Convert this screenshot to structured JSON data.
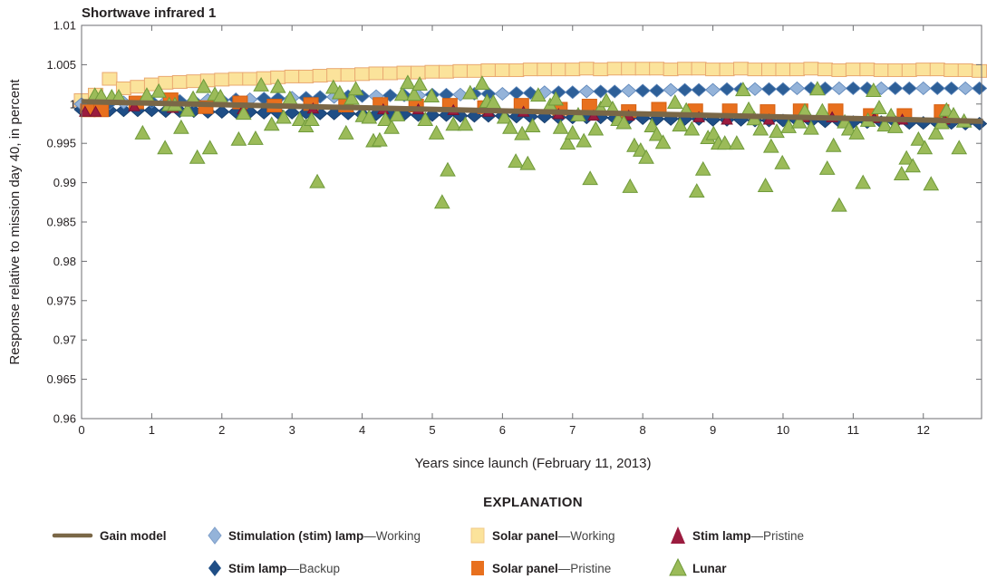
{
  "chart_data": {
    "type": "scatter",
    "title": "Shortwave infrared 1",
    "xlabel": "Years since launch (February 11, 2013)",
    "ylabel": "Response relative to mission day 40, in percent",
    "xlim": [
      0,
      12.83
    ],
    "ylim": [
      0.96,
      1.01
    ],
    "x_ticks": [
      "0",
      "1",
      "2",
      "3",
      "4",
      "5",
      "6",
      "7",
      "8",
      "9",
      "10",
      "11",
      "12"
    ],
    "y_ticks": [
      "0.96",
      "0.965",
      "0.97",
      "0.975",
      "0.98",
      "0.985",
      "0.99",
      "0.995",
      "1",
      "1.005",
      "1.01"
    ],
    "grid": false,
    "legend_title": "EXPLANATION",
    "legend_placement": "bottom",
    "legend": [
      {
        "key": "gain_model",
        "name": "Gain model",
        "suffix": ""
      },
      {
        "key": "stim_working",
        "name": "Stimulation (stim) lamp",
        "suffix": "—Working"
      },
      {
        "key": "solar_working",
        "name": "Solar panel",
        "suffix": "—Working"
      },
      {
        "key": "stim_pristine",
        "name": "Stim lamp",
        "suffix": "—Pristine"
      },
      {
        "key": "stim_backup",
        "name": "Stim lamp",
        "suffix": "—Backup"
      },
      {
        "key": "solar_pristine",
        "name": "Solar panel",
        "suffix": "—Pristine"
      },
      {
        "key": "lunar",
        "name": "Lunar",
        "suffix": ""
      }
    ],
    "colors": {
      "gain_model": "#7a6747",
      "stim_working": "#94b3d9",
      "stim_backup": "#1f4e86",
      "solar_working": "#fbe39b",
      "solar_pristine": "#e8701e",
      "stim_pristine": "#9b1c3f",
      "lunar": "#9bbb59"
    },
    "dense_x": [
      0,
      0.2,
      0.4,
      0.6,
      0.8,
      1.0,
      1.2,
      1.4,
      1.6,
      1.8,
      2.0,
      2.2,
      2.4,
      2.6,
      2.8,
      3.0,
      3.2,
      3.4,
      3.6,
      3.8,
      4.0,
      4.2,
      4.4,
      4.6,
      4.8,
      5.0,
      5.2,
      5.4,
      5.6,
      5.8,
      6.0,
      6.2,
      6.4,
      6.6,
      6.8,
      7.0,
      7.2,
      7.4,
      7.6,
      7.8,
      8.0,
      8.2,
      8.4,
      8.6,
      8.8,
      9.0,
      9.2,
      9.4,
      9.6,
      9.8,
      10.0,
      10.2,
      10.4,
      10.6,
      10.8,
      11.0,
      11.2,
      11.4,
      11.6,
      11.8,
      12.0,
      12.2,
      12.4,
      12.6,
      12.8
    ],
    "series": {
      "solar_working": [
        1.0005,
        1.0012,
        1.0032,
        1.002,
        1.0022,
        1.0025,
        1.0027,
        1.0028,
        1.0029,
        1.003,
        1.0031,
        1.0032,
        1.0032,
        1.0033,
        1.0034,
        1.0035,
        1.0035,
        1.0036,
        1.0037,
        1.0037,
        1.0038,
        1.0039,
        1.0039,
        1.004,
        1.004,
        1.0041,
        1.0041,
        1.0042,
        1.0042,
        1.0043,
        1.0043,
        1.0043,
        1.0044,
        1.0044,
        1.0044,
        1.0044,
        1.0045,
        1.0044,
        1.0045,
        1.0045,
        1.0045,
        1.0045,
        1.0044,
        1.0045,
        1.0045,
        1.0044,
        1.0044,
        1.0045,
        1.0044,
        1.0044,
        1.0044,
        1.0044,
        1.0045,
        1.0044,
        1.0043,
        1.0044,
        1.0044,
        1.0043,
        1.0043,
        1.0043,
        1.0044,
        1.0044,
        1.0043,
        1.0043,
        1.0042
      ],
      "stim_working": [
        1.0,
        1.0001,
        1.0001,
        1.0002,
        1.0002,
        1.0003,
        1.0003,
        1.0004,
        1.0004,
        1.0005,
        1.0005,
        1.0006,
        1.0006,
        1.0007,
        1.0007,
        1.0008,
        1.0008,
        1.0009,
        1.0009,
        1.001,
        1.001,
        1.001,
        1.0011,
        1.0011,
        1.0011,
        1.0012,
        1.0012,
        1.0012,
        1.0013,
        1.0013,
        1.0013,
        1.0014,
        1.0014,
        1.0015,
        1.0015,
        1.0015,
        1.0016,
        1.0016,
        1.0016,
        1.0017,
        1.0017,
        1.0017,
        1.0018,
        1.0018,
        1.0018,
        1.0018,
        1.0019,
        1.0019,
        1.0019,
        1.0019,
        1.0019,
        1.002,
        1.002,
        1.002,
        1.002,
        1.002,
        1.002,
        1.002,
        1.002,
        1.002,
        1.002,
        1.002,
        1.002,
        1.002,
        1.002
      ],
      "stim_backup": [
        0.9993,
        0.9993,
        0.9992,
        0.9992,
        0.9992,
        0.9992,
        0.9991,
        0.9991,
        0.9991,
        0.999,
        0.999,
        0.999,
        0.999,
        0.9989,
        0.9989,
        0.9989,
        0.9989,
        0.9988,
        0.9988,
        0.9988,
        0.9987,
        0.9987,
        0.9987,
        0.9987,
        0.9986,
        0.9986,
        0.9986,
        0.9985,
        0.9985,
        0.9985,
        0.9985,
        0.9984,
        0.9984,
        0.9984,
        0.9983,
        0.9983,
        0.9983,
        0.9983,
        0.9982,
        0.9982,
        0.9982,
        0.9981,
        0.9981,
        0.9981,
        0.9981,
        0.998,
        0.998,
        0.998,
        0.9979,
        0.9979,
        0.9979,
        0.9979,
        0.9978,
        0.9978,
        0.9978,
        0.9977,
        0.9977,
        0.9977,
        0.9977,
        0.9976,
        0.9976,
        0.9976,
        0.9976,
        0.9975,
        0.9975
      ],
      "solar_pristine": [
        [
          0.09,
          0.9992
        ],
        [
          0.28,
          0.9992
        ],
        [
          0.78,
          1.0002
        ],
        [
          1.27,
          1.0006
        ],
        [
          1.77,
          0.9996
        ],
        [
          2.26,
          1.0002
        ],
        [
          2.75,
          0.9998
        ],
        [
          3.27,
          1.0
        ],
        [
          3.77,
          0.9998
        ],
        [
          4.26,
          1.0
        ],
        [
          4.77,
          0.9998
        ],
        [
          5.25,
          0.9999
        ],
        [
          5.75,
          0.9996
        ],
        [
          6.27,
          0.9999
        ],
        [
          6.82,
          0.9994
        ],
        [
          7.24,
          0.9998
        ],
        [
          7.8,
          0.9991
        ],
        [
          8.23,
          0.9994
        ],
        [
          8.75,
          0.9992
        ],
        [
          9.24,
          0.9992
        ],
        [
          9.78,
          0.9991
        ],
        [
          10.25,
          0.9992
        ],
        [
          10.75,
          0.9992
        ],
        [
          11.25,
          0.9986
        ],
        [
          11.73,
          0.9986
        ],
        [
          12.26,
          0.9991
        ]
      ],
      "stim_pristine": [
        [
          0.05,
          0.999
        ],
        [
          0.2,
          0.999
        ],
        [
          0.75,
          0.9997
        ],
        [
          1.3,
          0.9995
        ],
        [
          2.3,
          0.9993
        ],
        [
          3.3,
          0.9994
        ],
        [
          4.3,
          0.9993
        ],
        [
          4.8,
          0.9993
        ],
        [
          5.3,
          0.9992
        ],
        [
          5.8,
          0.999
        ],
        [
          6.3,
          0.999
        ],
        [
          6.8,
          0.9987
        ],
        [
          7.3,
          0.9985
        ],
        [
          7.8,
          0.9985
        ],
        [
          8.8,
          0.9983
        ],
        [
          9.2,
          0.998
        ],
        [
          9.8,
          0.998
        ],
        [
          10.3,
          0.9983
        ],
        [
          10.7,
          0.9983
        ],
        [
          11.3,
          0.9982
        ],
        [
          11.7,
          0.998
        ],
        [
          12.3,
          0.998
        ]
      ],
      "gain_model": [
        [
          0,
          1.0003
        ],
        [
          12.85,
          0.9978
        ]
      ],
      "lunar": [
        [
          0.19,
          1.0011
        ],
        [
          0.28,
          1.001
        ],
        [
          0.43,
          1.0009
        ],
        [
          0.53,
          1.0009
        ],
        [
          0.87,
          0.9963
        ],
        [
          0.93,
          1.0011
        ],
        [
          1.1,
          1.0016
        ],
        [
          1.19,
          0.9944
        ],
        [
          1.25,
          0.9999
        ],
        [
          1.33,
          0.9999
        ],
        [
          1.42,
          0.997
        ],
        [
          1.51,
          0.9992
        ],
        [
          1.59,
          1.0007
        ],
        [
          1.65,
          0.9932
        ],
        [
          1.74,
          1.0022
        ],
        [
          1.83,
          0.9944
        ],
        [
          1.9,
          1.0012
        ],
        [
          1.98,
          1.0009
        ],
        [
          2.24,
          0.9955
        ],
        [
          2.31,
          0.9988
        ],
        [
          2.48,
          0.9956
        ],
        [
          2.56,
          1.0024
        ],
        [
          2.71,
          0.9974
        ],
        [
          2.8,
          1.0022
        ],
        [
          2.88,
          0.9983
        ],
        [
          2.97,
          1.0007
        ],
        [
          3.11,
          0.998
        ],
        [
          3.2,
          0.9972
        ],
        [
          3.28,
          0.998
        ],
        [
          3.36,
          0.9901
        ],
        [
          3.59,
          1.0021
        ],
        [
          3.68,
          1.0014
        ],
        [
          3.77,
          0.9963
        ],
        [
          3.85,
          1.0007
        ],
        [
          3.91,
          1.0019
        ],
        [
          4.01,
          0.9985
        ],
        [
          4.1,
          0.9983
        ],
        [
          4.16,
          0.9953
        ],
        [
          4.25,
          0.9954
        ],
        [
          4.33,
          0.998
        ],
        [
          4.42,
          0.997
        ],
        [
          4.5,
          0.9986
        ],
        [
          4.57,
          1.0012
        ],
        [
          4.65,
          1.0027
        ],
        [
          4.74,
          1.0012
        ],
        [
          4.82,
          1.0025
        ],
        [
          4.9,
          0.998
        ],
        [
          4.99,
          1.001
        ],
        [
          5.06,
          0.9963
        ],
        [
          5.14,
          0.9875
        ],
        [
          5.22,
          0.9916
        ],
        [
          5.3,
          0.9974
        ],
        [
          5.47,
          0.9974
        ],
        [
          5.54,
          1.0014
        ],
        [
          5.71,
          1.0026
        ],
        [
          5.78,
          1.0003
        ],
        [
          5.87,
          1.0002
        ],
        [
          6.03,
          0.9983
        ],
        [
          6.11,
          0.997
        ],
        [
          6.19,
          0.9927
        ],
        [
          6.28,
          0.9962
        ],
        [
          6.36,
          0.9924
        ],
        [
          6.43,
          0.9972
        ],
        [
          6.51,
          1.0011
        ],
        [
          6.68,
          0.9998
        ],
        [
          6.76,
          1.0006
        ],
        [
          6.83,
          0.997
        ],
        [
          6.93,
          0.995
        ],
        [
          7.0,
          0.9963
        ],
        [
          7.08,
          0.9986
        ],
        [
          7.16,
          0.9953
        ],
        [
          7.25,
          0.9905
        ],
        [
          7.33,
          0.9968
        ],
        [
          7.4,
          0.9994
        ],
        [
          7.48,
          1.0004
        ],
        [
          7.57,
          0.9994
        ],
        [
          7.65,
          0.998
        ],
        [
          7.73,
          0.9976
        ],
        [
          7.82,
          0.9895
        ],
        [
          7.88,
          0.9947
        ],
        [
          7.97,
          0.9941
        ],
        [
          8.05,
          0.9932
        ],
        [
          8.13,
          0.9972
        ],
        [
          8.2,
          0.9961
        ],
        [
          8.29,
          0.9951
        ],
        [
          8.46,
          1.0002
        ],
        [
          8.53,
          0.9973
        ],
        [
          8.62,
          0.9992
        ],
        [
          8.7,
          0.9968
        ],
        [
          8.77,
          0.9889
        ],
        [
          8.86,
          0.9917
        ],
        [
          8.93,
          0.9957
        ],
        [
          9.01,
          0.9962
        ],
        [
          9.08,
          0.995
        ],
        [
          9.17,
          0.995
        ],
        [
          9.34,
          0.995
        ],
        [
          9.43,
          1.0018
        ],
        [
          9.51,
          0.9993
        ],
        [
          9.59,
          0.9981
        ],
        [
          9.68,
          0.9968
        ],
        [
          9.75,
          0.9896
        ],
        [
          9.83,
          0.9946
        ],
        [
          9.91,
          0.9965
        ],
        [
          9.99,
          0.9925
        ],
        [
          10.08,
          0.9971
        ],
        [
          10.23,
          0.9977
        ],
        [
          10.31,
          0.9991
        ],
        [
          10.4,
          0.9969
        ],
        [
          10.49,
          1.0019
        ],
        [
          10.56,
          0.9991
        ],
        [
          10.63,
          0.9918
        ],
        [
          10.72,
          0.9947
        ],
        [
          10.8,
          0.9871
        ],
        [
          10.88,
          0.9977
        ],
        [
          10.94,
          0.9968
        ],
        [
          11.05,
          0.9963
        ],
        [
          11.14,
          0.99
        ],
        [
          11.21,
          0.9979
        ],
        [
          11.29,
          1.0017
        ],
        [
          11.37,
          0.9995
        ],
        [
          11.45,
          0.9973
        ],
        [
          11.54,
          0.9985
        ],
        [
          11.6,
          0.9971
        ],
        [
          11.69,
          0.9911
        ],
        [
          11.76,
          0.9931
        ],
        [
          11.85,
          0.9921
        ],
        [
          11.93,
          0.9955
        ],
        [
          12.02,
          0.9944
        ],
        [
          12.11,
          0.9898
        ],
        [
          12.18,
          0.9963
        ],
        [
          12.26,
          0.9976
        ],
        [
          12.33,
          0.9992
        ],
        [
          12.43,
          0.9986
        ],
        [
          12.51,
          0.9944
        ],
        [
          12.58,
          0.9978
        ]
      ]
    }
  }
}
